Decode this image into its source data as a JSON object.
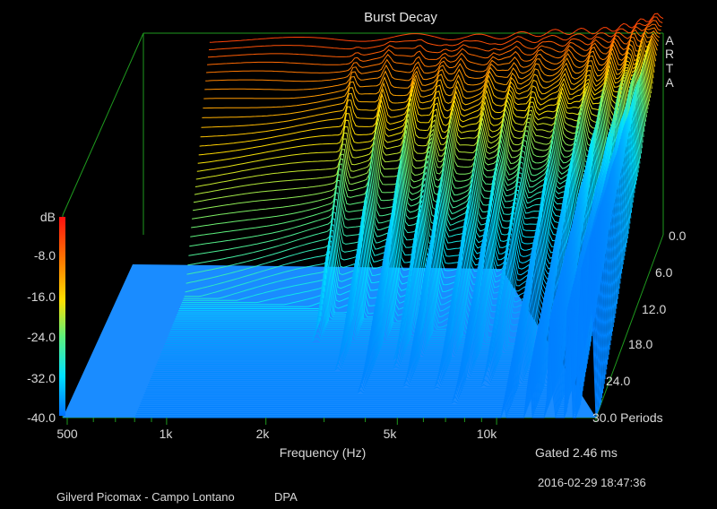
{
  "chart_data": {
    "type": "waterfall",
    "title": "Burst Decay",
    "brand": [
      "A",
      "R",
      "T",
      "A"
    ],
    "xlabel": "Frequency (Hz)",
    "x_ticks": [
      "500",
      "1k",
      "2k",
      "5k",
      "10k"
    ],
    "x_tick_values": [
      500,
      1000,
      2000,
      5000,
      10000
    ],
    "x_range": [
      500,
      20000
    ],
    "x_scale": "log",
    "z_label": "dB",
    "z_ticks": [
      "-8.0",
      "-16.0",
      "-24.0",
      "-32.0",
      "-40.0"
    ],
    "z_tick_values": [
      -8,
      -16,
      -24,
      -32,
      -40
    ],
    "z_range": [
      -40,
      0
    ],
    "depth_ticks": [
      "0.0",
      "6.0",
      "12.0",
      "18.0",
      "24.0",
      "30.0 Periods"
    ],
    "depth_tick_values": [
      0,
      6,
      12,
      18,
      24,
      30
    ],
    "depth_range": [
      0,
      30
    ],
    "depth_unit": "Periods",
    "gating": "Gated 2.46 ms",
    "timestamp": "2016-02-29  18:47:36",
    "footer_left": "Gilverd Picomax - Campo Lontano",
    "footer_right": "DPA",
    "colorbar": [
      "#ff1010",
      "#ff7a00",
      "#ffe000",
      "#5ef07a",
      "#00e0ff",
      "#0070ff"
    ],
    "floor_color": "#1a8cff",
    "front_response_db": [
      [
        800,
        -1.5
      ],
      [
        1000,
        -1.5
      ],
      [
        1500,
        -1.4
      ],
      [
        2000,
        -1.2
      ],
      [
        3000,
        -0.8
      ],
      [
        4000,
        -0.6
      ],
      [
        5000,
        -0.9
      ],
      [
        7000,
        -0.4
      ],
      [
        10000,
        0.3
      ],
      [
        13000,
        0.5
      ],
      [
        16000,
        1.6
      ],
      [
        19000,
        3.4
      ],
      [
        20000,
        3.5
      ]
    ]
  }
}
